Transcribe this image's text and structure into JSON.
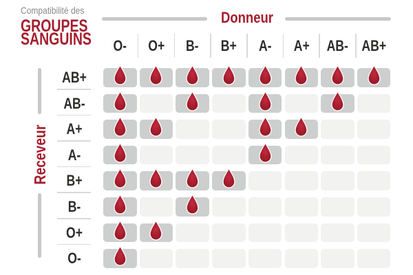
{
  "title": {
    "eyebrow": "Compatibilité des",
    "line1": "GROUPES",
    "line2": "SANGUINS"
  },
  "axes": {
    "donor": "Donneur",
    "receiver": "Receveur"
  },
  "chart_data": {
    "type": "table",
    "title": "Compatibilité des groupes sanguins",
    "donor_columns": [
      "O-",
      "O+",
      "B-",
      "B+",
      "A-",
      "A+",
      "AB-",
      "AB+"
    ],
    "receiver_rows": [
      "AB+",
      "AB-",
      "A+",
      "A-",
      "B+",
      "B-",
      "O+",
      "O-"
    ],
    "marker": "blood-drop",
    "compatibility_matrix": [
      [
        1,
        1,
        1,
        1,
        1,
        1,
        1,
        1
      ],
      [
        1,
        0,
        1,
        0,
        1,
        0,
        1,
        0
      ],
      [
        1,
        1,
        0,
        0,
        1,
        1,
        0,
        0
      ],
      [
        1,
        0,
        0,
        0,
        1,
        0,
        0,
        0
      ],
      [
        1,
        1,
        1,
        1,
        0,
        0,
        0,
        0
      ],
      [
        1,
        0,
        1,
        0,
        0,
        0,
        0,
        0
      ],
      [
        1,
        1,
        0,
        0,
        0,
        0,
        0,
        0
      ],
      [
        1,
        0,
        0,
        0,
        0,
        0,
        0,
        0
      ]
    ]
  },
  "colors": {
    "accent_red": "#A51E2D",
    "drop_red": "#A81E2E",
    "cell_filled": "#CDCFCE",
    "cell_empty": "#F2F2F1",
    "axis_line_gray": "#C8C8C8",
    "separator_gray": "#DADADA",
    "label_text": "#2E2D2B",
    "eyebrow_gray": "#8A8A8A",
    "background": "#FFFFFF"
  }
}
